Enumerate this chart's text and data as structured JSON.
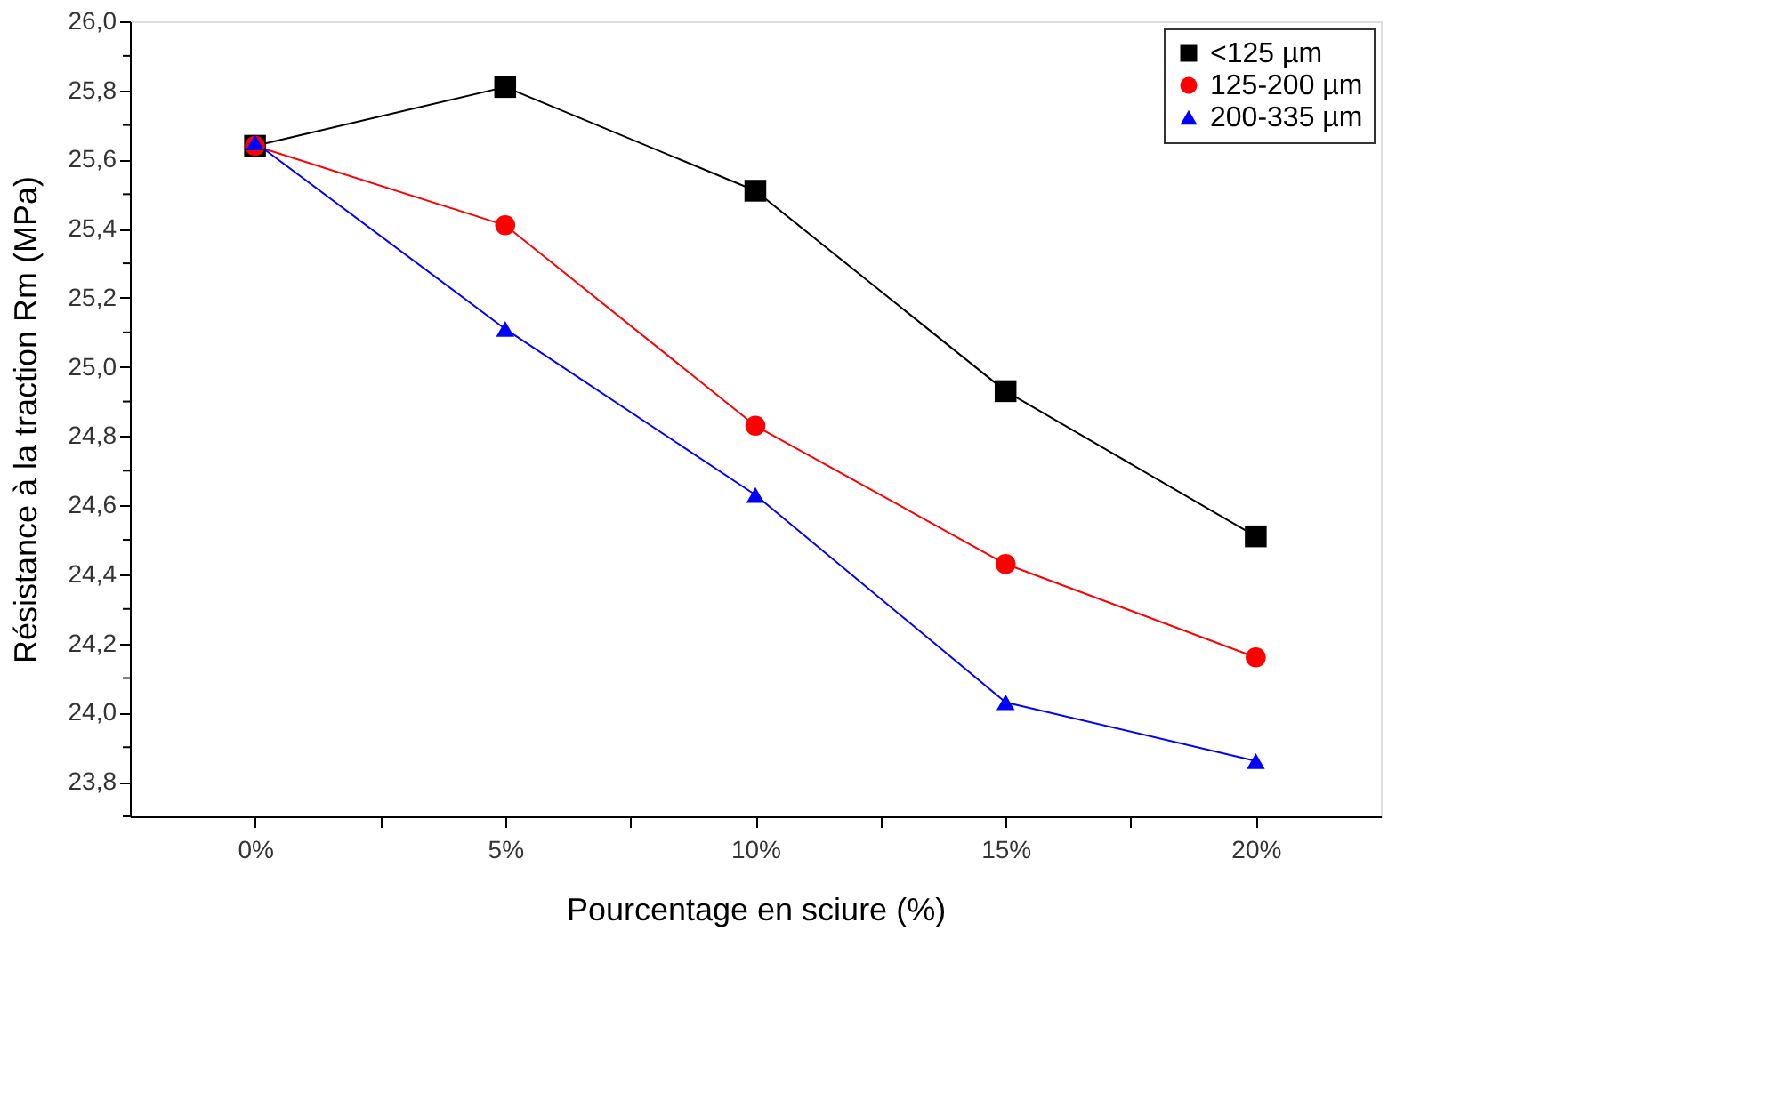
{
  "chart_data": {
    "type": "line",
    "xlabel": "Pourcentage en sciure (%)",
    "ylabel": "Résistance à la traction Rm (MPa)",
    "x": [
      0,
      5,
      10,
      15,
      20
    ],
    "xlim": [
      -2.5,
      22.5
    ],
    "xticks": [
      {
        "value": 0,
        "label": "0%"
      },
      {
        "value": 2.5,
        "label": null
      },
      {
        "value": 5,
        "label": "5%"
      },
      {
        "value": 7.5,
        "label": null
      },
      {
        "value": 10,
        "label": "10%"
      },
      {
        "value": 12.5,
        "label": null
      },
      {
        "value": 15,
        "label": "15%"
      },
      {
        "value": 17.5,
        "label": null
      },
      {
        "value": 20,
        "label": "20%"
      }
    ],
    "ylim": [
      23.7,
      26.0
    ],
    "yticks": [
      {
        "value": 23.7,
        "label": null
      },
      {
        "value": 23.8,
        "label": "23,8"
      },
      {
        "value": 23.9,
        "label": null
      },
      {
        "value": 24.0,
        "label": "24,0"
      },
      {
        "value": 24.1,
        "label": null
      },
      {
        "value": 24.2,
        "label": "24,2"
      },
      {
        "value": 24.3,
        "label": null
      },
      {
        "value": 24.4,
        "label": "24,4"
      },
      {
        "value": 24.5,
        "label": null
      },
      {
        "value": 24.6,
        "label": "24,6"
      },
      {
        "value": 24.7,
        "label": null
      },
      {
        "value": 24.8,
        "label": "24,8"
      },
      {
        "value": 24.9,
        "label": null
      },
      {
        "value": 25.0,
        "label": "25,0"
      },
      {
        "value": 25.1,
        "label": null
      },
      {
        "value": 25.2,
        "label": "25,2"
      },
      {
        "value": 25.3,
        "label": null
      },
      {
        "value": 25.4,
        "label": "25,4"
      },
      {
        "value": 25.5,
        "label": null
      },
      {
        "value": 25.6,
        "label": "25,6"
      },
      {
        "value": 25.7,
        "label": null
      },
      {
        "value": 25.8,
        "label": "25,8"
      },
      {
        "value": 25.9,
        "label": null
      },
      {
        "value": 26.0,
        "label": "26,0"
      }
    ],
    "grid": false,
    "legend": "top right",
    "line_style": "solid",
    "series": [
      {
        "name": "<125 µm",
        "color": "#000000",
        "marker": "square",
        "values": [
          25.64,
          25.81,
          25.51,
          24.93,
          24.51
        ]
      },
      {
        "name": "125-200 µm",
        "color": "#ff0000",
        "marker": "circle",
        "values": [
          25.64,
          25.41,
          24.83,
          24.43,
          24.16
        ]
      },
      {
        "name": "200-335 µm",
        "color": "#0000ff",
        "marker": "triangle",
        "values": [
          25.65,
          25.11,
          24.63,
          24.03,
          23.86
        ]
      }
    ]
  }
}
